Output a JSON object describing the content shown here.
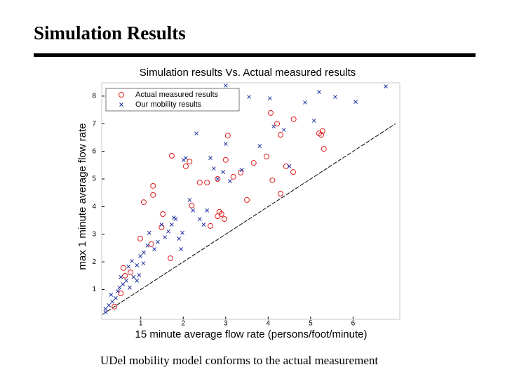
{
  "slide_title": "Simulation Results",
  "caption": "UDel mobility model conforms to the actual measurement",
  "chart_data": {
    "type": "scatter",
    "title": "Simulation results Vs. Actual measured results",
    "xlabel": "15 minute average flow rate (persons/foot/minute)",
    "ylabel": "max 1 minute average flow rate",
    "xlim": [
      0.08,
      7.1
    ],
    "ylim": [
      -0.08,
      8.48
    ],
    "xticks": [
      1,
      2,
      3,
      4,
      5,
      6
    ],
    "yticks": [
      1,
      2,
      3,
      4,
      5,
      6,
      7,
      8
    ],
    "grid": false,
    "legend": "upper left",
    "series": [
      {
        "name": "Actual measured results",
        "color": "#e02020",
        "marker": "circle",
        "x": [
          0.38,
          0.53,
          0.59,
          0.63,
          0.76,
          0.99,
          1.07,
          1.29,
          1.29,
          1.25,
          1.49,
          1.7,
          1.73,
          2.06,
          2.15,
          2.2,
          2.39,
          2.56,
          2.81,
          2.81,
          2.85,
          2.9,
          2.97,
          3.0,
          3.05,
          3.18,
          3.35,
          3.5,
          3.66,
          4.06,
          4.1,
          3.96,
          4.21,
          4.29,
          4.29,
          4.42,
          4.6,
          4.59,
          5.2,
          5.28,
          5.31,
          5.25,
          2.64,
          1.52
        ],
        "values": [
          0.38,
          0.86,
          1.78,
          1.5,
          1.62,
          2.84,
          4.16,
          4.75,
          4.42,
          2.64,
          3.25,
          2.13,
          5.84,
          5.46,
          5.63,
          4.04,
          4.87,
          4.87,
          5.0,
          3.65,
          3.81,
          3.73,
          3.55,
          5.69,
          6.57,
          5.08,
          5.23,
          4.24,
          5.58,
          7.39,
          4.95,
          5.81,
          7.0,
          6.6,
          4.47,
          5.46,
          7.16,
          5.25,
          6.65,
          6.73,
          6.09,
          6.6,
          3.3,
          3.73
        ]
      },
      {
        "name": "Our mobility results",
        "color": "#2030a0",
        "marker": "x",
        "x": [
          0.17,
          0.25,
          0.33,
          0.41,
          0.46,
          0.5,
          0.58,
          0.66,
          0.74,
          0.83,
          0.91,
          0.71,
          0.79,
          0.91,
          0.99,
          1.07,
          1.16,
          1.2,
          1.32,
          1.4,
          1.57,
          1.65,
          1.73,
          1.82,
          1.9,
          1.98,
          2.06,
          2.15,
          2.23,
          2.31,
          2.39,
          2.48,
          2.56,
          2.64,
          2.72,
          2.81,
          2.94,
          3.0,
          3.0,
          3.1,
          3.38,
          3.55,
          3.8,
          4.04,
          4.13,
          4.37,
          4.5,
          4.87,
          5.08,
          5.2,
          5.58,
          6.06,
          6.77,
          0.17,
          0.3,
          0.53,
          0.96,
          1.06,
          1.49,
          1.78,
          1.95,
          2.01
        ],
        "values": [
          0.3,
          0.43,
          0.56,
          0.69,
          0.94,
          1.07,
          1.19,
          1.32,
          1.07,
          1.45,
          1.32,
          1.83,
          2.03,
          1.88,
          2.21,
          2.34,
          2.59,
          3.05,
          2.46,
          2.72,
          2.89,
          3.1,
          3.35,
          3.55,
          2.84,
          3.05,
          5.76,
          4.24,
          3.86,
          6.65,
          3.55,
          3.35,
          3.86,
          5.76,
          5.38,
          5.0,
          5.25,
          6.27,
          8.38,
          4.92,
          5.33,
          7.97,
          6.19,
          7.92,
          6.9,
          6.78,
          5.46,
          7.77,
          7.11,
          8.15,
          7.97,
          7.79,
          8.35,
          0.18,
          0.81,
          1.45,
          1.52,
          1.95,
          3.35,
          3.6,
          2.46,
          5.69
        ]
      }
    ],
    "reference_line": {
      "x": [
        0.1,
        7.0
      ],
      "values": [
        0.1,
        7.0
      ],
      "color": "#000000",
      "dashed": true
    }
  }
}
